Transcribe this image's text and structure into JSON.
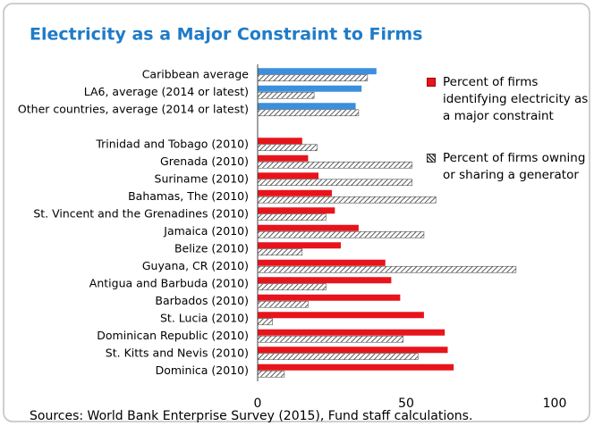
{
  "chart_data": {
    "type": "hbar",
    "title": "Electricity as a Major Constraint to Firms",
    "source": "Sources: World Bank Enterprise Survey (2015), Fund staff calculations.",
    "categories": [
      "Caribbean average",
      "LA6, average (2014 or latest)",
      "Other countries, average (2014 or latest)",
      null,
      "Trinidad and Tobago (2010)",
      "Grenada (2010)",
      "Suriname (2010)",
      "Bahamas, The (2010)",
      "St. Vincent and the Grenadines (2010)",
      "Jamaica (2010)",
      "Belize (2010)",
      "Guyana, CR (2010)",
      "Antigua and Barbuda (2010)",
      "Barbados (2010)",
      "St. Lucia (2010)",
      "Dominican Republic (2010)",
      "St. Kitts and Nevis (2010)",
      "Dominica (2010)"
    ],
    "series": [
      {
        "name": "Percent of firms identifying electricity as a major constraint",
        "color": "#e8141b",
        "colors": [
          "#3b8fdc",
          "#3b8fdc",
          "#3b8fdc",
          null,
          "#e8141b",
          "#e8141b",
          "#e8141b",
          "#e8141b",
          "#e8141b",
          "#e8141b",
          "#e8141b",
          "#e8141b",
          "#e8141b",
          "#e8141b",
          "#e8141b",
          "#e8141b",
          "#e8141b",
          "#e8141b"
        ],
        "values": [
          40,
          35,
          33,
          null,
          15,
          17,
          20.5,
          25,
          26,
          34,
          28,
          43,
          45,
          48,
          56,
          63,
          64,
          66
        ]
      },
      {
        "name": "Percent of firms owning or sharing a generator",
        "color": "hatch",
        "values": [
          37,
          19,
          34,
          null,
          20,
          52,
          52,
          60,
          23,
          56,
          15,
          87,
          23,
          17,
          5,
          49,
          54,
          9
        ]
      }
    ],
    "xlim": [
      0,
      100
    ],
    "xticks": [
      0,
      50,
      100
    ],
    "grid": false
  }
}
